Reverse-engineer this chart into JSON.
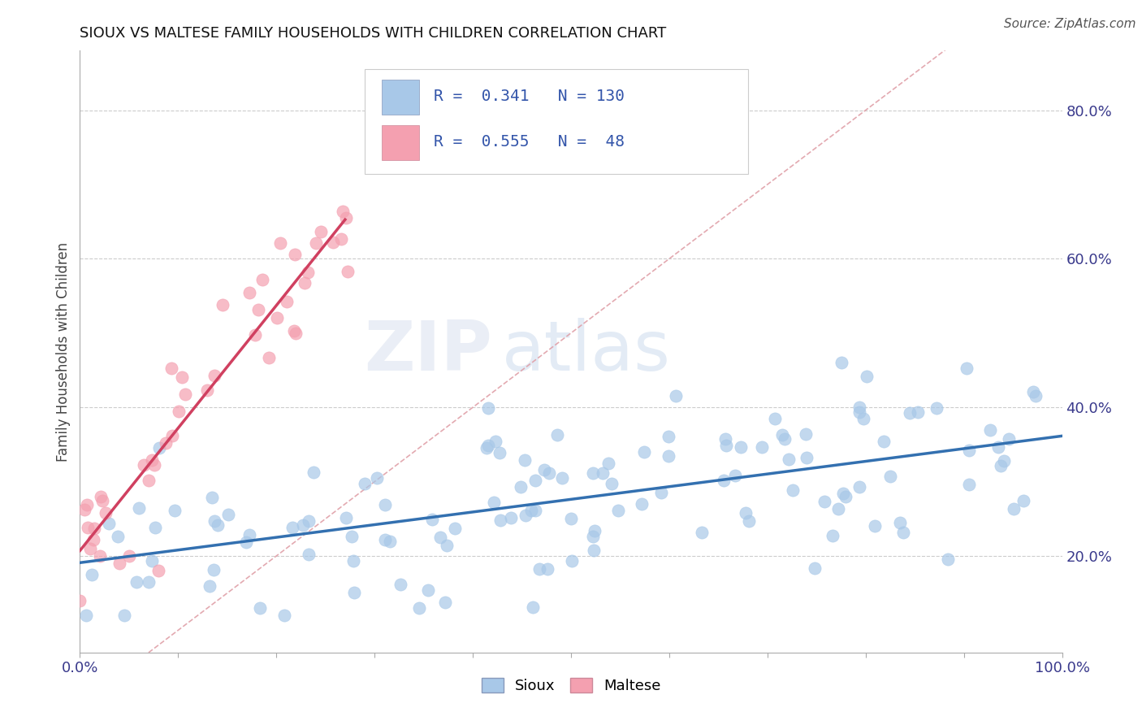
{
  "title": "SIOUX VS MALTESE FAMILY HOUSEHOLDS WITH CHILDREN CORRELATION CHART",
  "source": "Source: ZipAtlas.com",
  "ylabel": "Family Households with Children",
  "xlim": [
    0.0,
    1.0
  ],
  "ylim": [
    0.07,
    0.88
  ],
  "sioux_color": "#a8c8e8",
  "maltese_color": "#f4a0b0",
  "sioux_line_color": "#3370b0",
  "maltese_line_color": "#d04060",
  "diagonal_color": "#e0a0a8",
  "R_sioux": 0.341,
  "N_sioux": 130,
  "R_maltese": 0.555,
  "N_maltese": 48,
  "background_color": "#ffffff",
  "grid_color": "#cccccc",
  "watermark_zip": "ZIP",
  "watermark_atlas": "atlas"
}
